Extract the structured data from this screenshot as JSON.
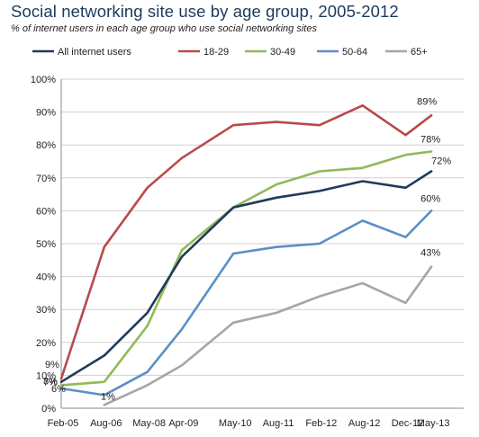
{
  "chart_data": {
    "type": "line",
    "title": "Social networking site use by age group, 2005-2012",
    "subtitle": "% of internet users in each age group who use social networking sites",
    "categories": [
      "Feb-05",
      "Aug-06",
      "May-08",
      "Apr-09",
      "May-10",
      "Aug-11",
      "Feb-12",
      "Aug-12",
      "Dec-12",
      "May-13"
    ],
    "x": [
      0,
      1,
      2,
      2.8,
      4,
      5,
      6,
      7,
      8,
      8.6
    ],
    "ylim": [
      0,
      100
    ],
    "yticks": [
      0,
      10,
      20,
      30,
      40,
      50,
      60,
      70,
      80,
      90,
      100
    ],
    "ytick_labels": [
      "0%",
      "10%",
      "20%",
      "30%",
      "40%",
      "50%",
      "60%",
      "70%",
      "80%",
      "90%",
      "100%"
    ],
    "grid": "horizontal",
    "legend": "top",
    "series": [
      {
        "name": "All internet users",
        "color": "#1f3b5a",
        "values": [
          8,
          16,
          29,
          46,
          61,
          64,
          66,
          69,
          67,
          72
        ]
      },
      {
        "name": "18-29",
        "color": "#b94a4a",
        "values": [
          9,
          49,
          67,
          76,
          86,
          87,
          86,
          92,
          83,
          89
        ]
      },
      {
        "name": "30-49",
        "color": "#93b85a",
        "values": [
          7,
          8,
          25,
          48,
          61,
          68,
          72,
          73,
          77,
          78
        ]
      },
      {
        "name": "50-64",
        "color": "#5b8fc7",
        "values": [
          6,
          4,
          11,
          24,
          47,
          49,
          50,
          57,
          52,
          60
        ]
      },
      {
        "name": "65+",
        "color": "#a6a6a6",
        "values": [
          null,
          1,
          7,
          13,
          26,
          29,
          34,
          38,
          32,
          43
        ]
      }
    ],
    "start_labels": [
      "8%",
      "9%",
      "7%",
      "6%",
      "1%"
    ],
    "end_labels": [
      "72%",
      "89%",
      "78%",
      "60%",
      "43%"
    ]
  }
}
